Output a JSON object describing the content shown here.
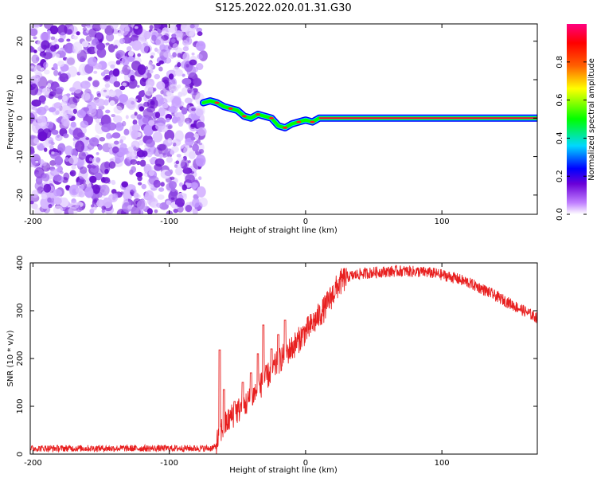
{
  "figure": {
    "title": "S125.2022.020.01.31.G30"
  },
  "chart_data": [
    {
      "type": "heatmap",
      "xlabel": "Height of straight line (km)",
      "ylabel": "Frequency (Hz)",
      "xlim": [
        -202,
        170
      ],
      "ylim": [
        -25,
        24.5
      ],
      "xticks": [
        -200,
        -100,
        0,
        100
      ],
      "yticks": [
        20,
        10,
        0,
        -10,
        -20
      ],
      "xtick_labels": [
        "-200",
        "-100",
        "0",
        "100"
      ],
      "ytick_labels": [
        "20",
        "10",
        "0",
        "-10",
        "-20"
      ],
      "noise_region_x": [
        -202,
        -75
      ],
      "signal_track": {
        "x": [
          -75,
          -70,
          -65,
          -60,
          -55,
          -50,
          -45,
          -40,
          -35,
          -30,
          -25,
          -20,
          -15,
          -10,
          -5,
          0,
          5,
          10,
          20,
          40,
          60,
          80,
          100,
          120,
          140,
          160,
          170
        ],
        "frequency_hz": [
          4.0,
          4.5,
          4.0,
          3.0,
          2.5,
          2.0,
          0.5,
          0.0,
          1.0,
          0.5,
          0.0,
          -2.0,
          -2.5,
          -1.5,
          -1.0,
          -0.5,
          -1.0,
          0.0,
          0.0,
          0.0,
          0.0,
          0.0,
          0.0,
          0.0,
          0.0,
          0.0,
          0.0
        ]
      },
      "colorbar": {
        "label": "Normalized spectral amplitude",
        "ticks": [
          0.0,
          0.2,
          0.4,
          0.6,
          0.8
        ],
        "tick_labels": [
          "0.0",
          "0.2",
          "0.4",
          "0.6",
          "0.8"
        ],
        "range": [
          0,
          1
        ],
        "colors": [
          "#ffffff",
          "#c080ff",
          "#6a00d8",
          "#0000ff",
          "#00d8ff",
          "#00ff00",
          "#ffff00",
          "#ff6000",
          "#ff0000",
          "#ff0080"
        ]
      }
    },
    {
      "type": "line",
      "xlabel": "Height of straight line (km)",
      "ylabel": "SNR (10 * v/v)",
      "xlim": [
        -202,
        170
      ],
      "ylim": [
        0,
        400
      ],
      "xticks": [
        -200,
        -100,
        0,
        100
      ],
      "yticks": [
        0,
        100,
        200,
        300,
        400
      ],
      "xtick_labels": [
        "-200",
        "-100",
        "0",
        "100"
      ],
      "ytick_labels": [
        "0",
        "100",
        "200",
        "300",
        "400"
      ],
      "series": [
        {
          "color": "#e82020",
          "x": [
            -202,
            -190,
            -180,
            -170,
            -160,
            -150,
            -140,
            -130,
            -120,
            -110,
            -100,
            -90,
            -80,
            -70,
            -66,
            -62,
            -58,
            -54,
            -50,
            -46,
            -42,
            -38,
            -34,
            -30,
            -26,
            -22,
            -18,
            -14,
            -10,
            -6,
            -2,
            2,
            6,
            10,
            14,
            18,
            22,
            26,
            30,
            40,
            50,
            60,
            70,
            80,
            90,
            100,
            110,
            120,
            130,
            140,
            150,
            160,
            170
          ],
          "y": [
            12,
            12,
            12,
            12,
            12,
            12,
            12,
            12,
            12,
            12,
            12,
            12,
            12,
            12,
            15,
            50,
            65,
            80,
            90,
            100,
            110,
            125,
            140,
            155,
            170,
            185,
            200,
            212,
            222,
            235,
            250,
            262,
            275,
            290,
            305,
            325,
            345,
            360,
            370,
            377,
            380,
            382,
            383,
            382,
            380,
            375,
            368,
            358,
            345,
            330,
            315,
            300,
            285
          ],
          "spikes": [
            {
              "x": -63,
              "y": 218
            },
            {
              "x": -60,
              "y": 135
            },
            {
              "x": -52,
              "y": 110
            },
            {
              "x": -46,
              "y": 150
            },
            {
              "x": -40,
              "y": 170
            },
            {
              "x": -35,
              "y": 210
            },
            {
              "x": -31,
              "y": 270
            },
            {
              "x": -25,
              "y": 220
            },
            {
              "x": -20,
              "y": 250
            },
            {
              "x": -15,
              "y": 280
            }
          ]
        }
      ]
    }
  ]
}
